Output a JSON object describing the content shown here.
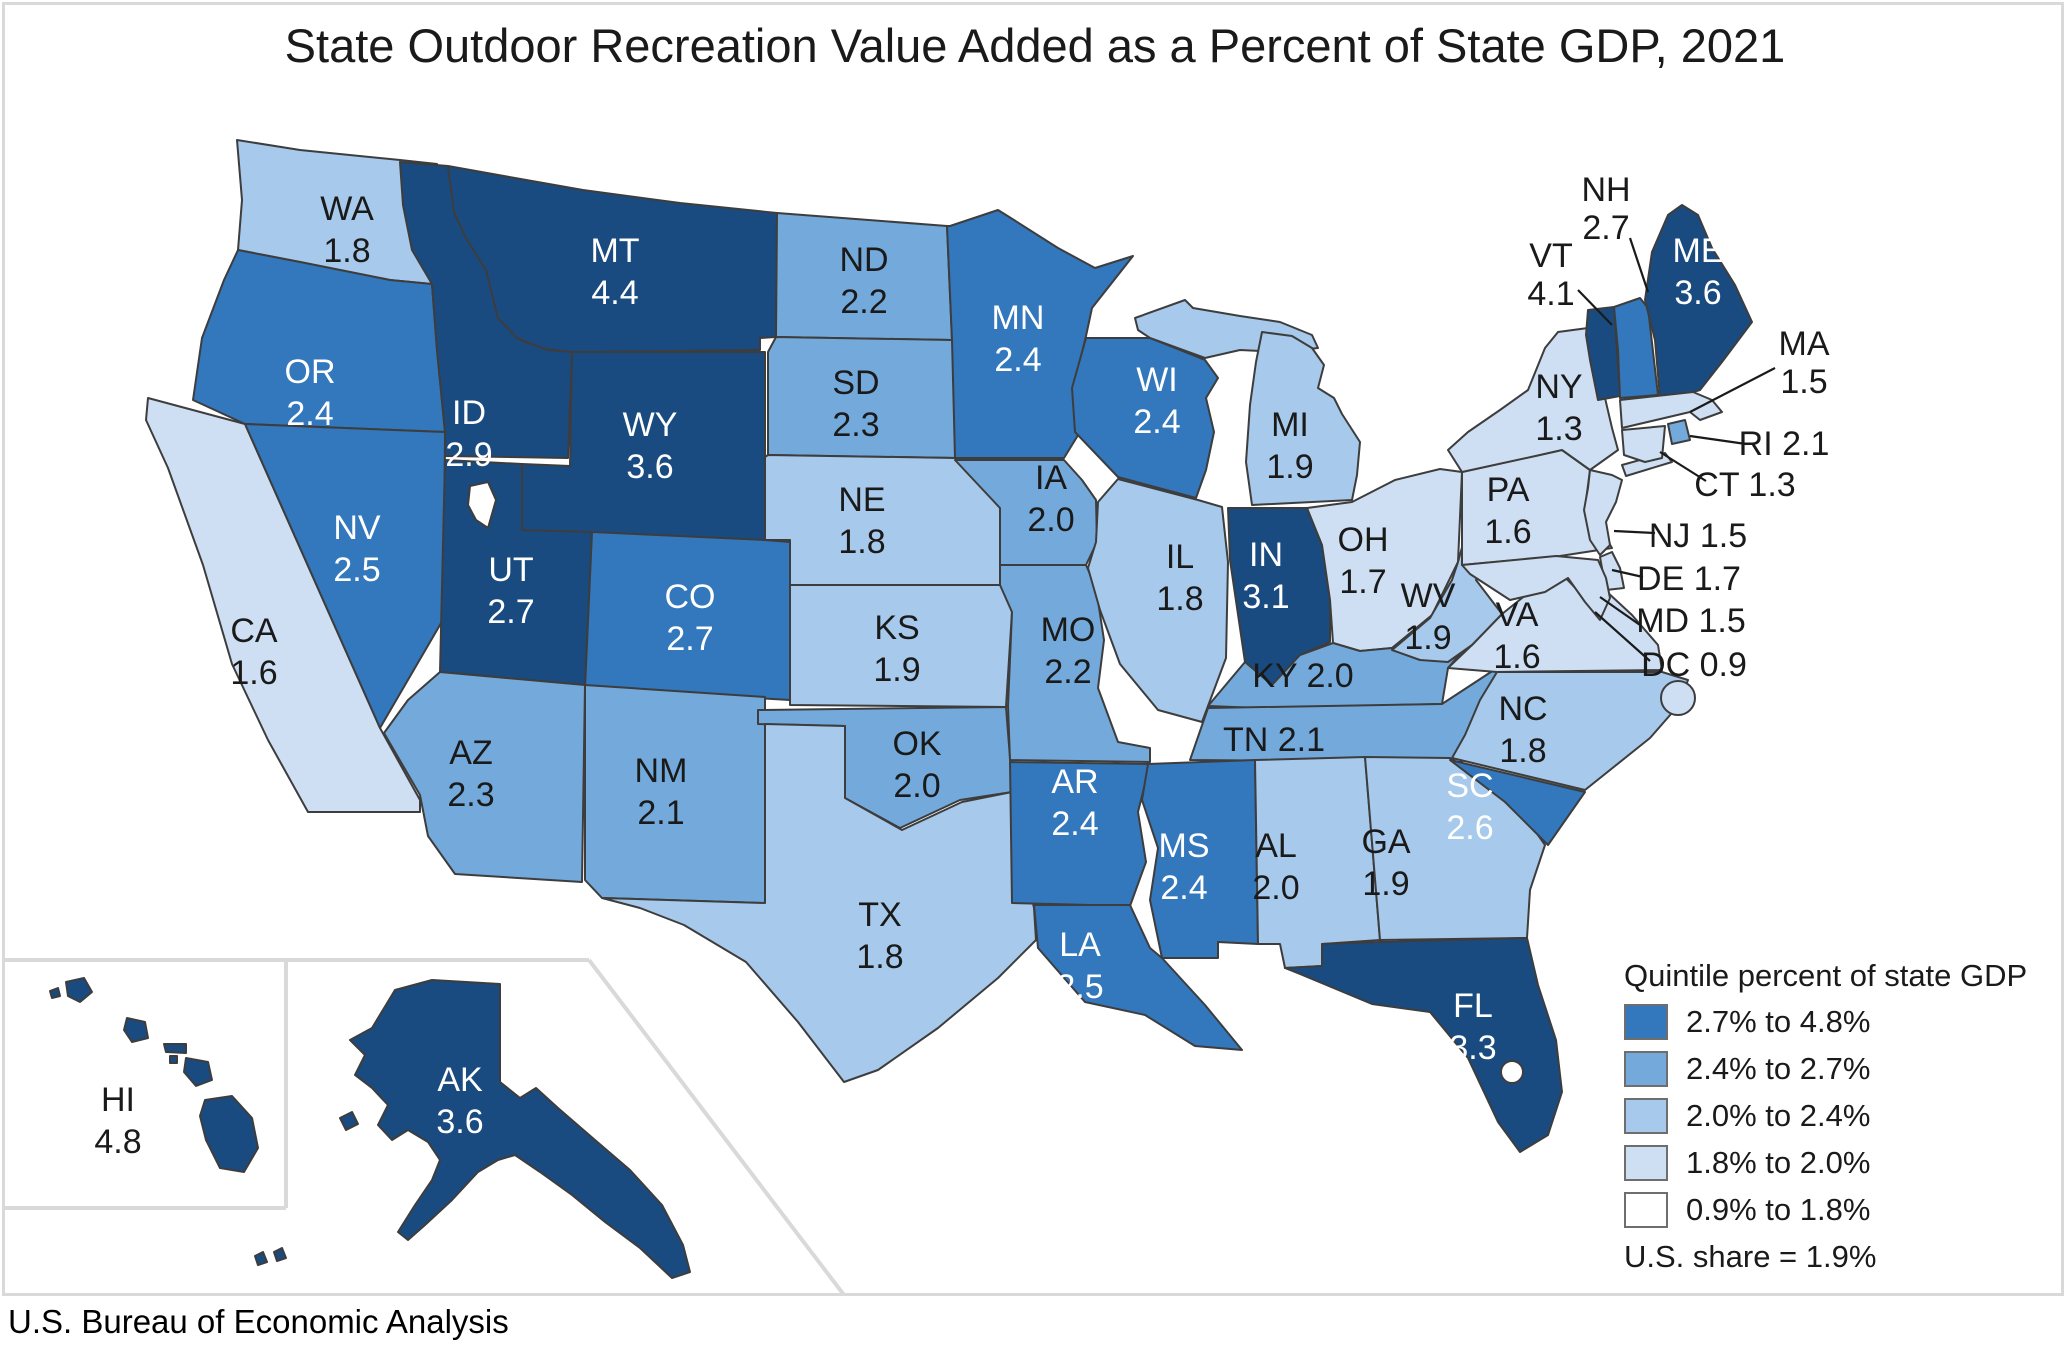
{
  "title": "State Outdoor Recreation Value Added as a Percent of State GDP, 2021",
  "source": "U.S. Bureau of Economic Analysis",
  "legend": {
    "title": "Quintile percent of state GDP",
    "items": [
      {
        "label": "2.7% to 4.8%",
        "color": "#1A4B80"
      },
      {
        "label": "2.4% to 2.7%",
        "color": "#3377BD"
      },
      {
        "label": "2.0% to 2.4%",
        "color": "#74AADB"
      },
      {
        "label": "1.8% to 2.0%",
        "color": "#A7C9EB"
      },
      {
        "label": "0.9% to 1.8%",
        "color": "#CEDFF3"
      }
    ],
    "us_share": "U.S. share = 1.9%"
  },
  "states": [
    {
      "abbr": "WA",
      "value": "1.8",
      "quintile": 4
    },
    {
      "abbr": "OR",
      "value": "2.4",
      "quintile": 2
    },
    {
      "abbr": "CA",
      "value": "1.6",
      "quintile": 5
    },
    {
      "abbr": "NV",
      "value": "2.5",
      "quintile": 2
    },
    {
      "abbr": "ID",
      "value": "2.9",
      "quintile": 1
    },
    {
      "abbr": "MT",
      "value": "4.4",
      "quintile": 1
    },
    {
      "abbr": "WY",
      "value": "3.6",
      "quintile": 1
    },
    {
      "abbr": "UT",
      "value": "2.7",
      "quintile": 1
    },
    {
      "abbr": "CO",
      "value": "2.7",
      "quintile": 2
    },
    {
      "abbr": "AZ",
      "value": "2.3",
      "quintile": 3
    },
    {
      "abbr": "NM",
      "value": "2.1",
      "quintile": 3
    },
    {
      "abbr": "ND",
      "value": "2.2",
      "quintile": 3
    },
    {
      "abbr": "SD",
      "value": "2.3",
      "quintile": 3
    },
    {
      "abbr": "NE",
      "value": "1.8",
      "quintile": 4
    },
    {
      "abbr": "KS",
      "value": "1.9",
      "quintile": 4
    },
    {
      "abbr": "OK",
      "value": "2.0",
      "quintile": 3
    },
    {
      "abbr": "TX",
      "value": "1.8",
      "quintile": 4
    },
    {
      "abbr": "MN",
      "value": "2.4",
      "quintile": 2
    },
    {
      "abbr": "IA",
      "value": "2.0",
      "quintile": 3
    },
    {
      "abbr": "MO",
      "value": "2.2",
      "quintile": 3
    },
    {
      "abbr": "AR",
      "value": "2.4",
      "quintile": 2
    },
    {
      "abbr": "LA",
      "value": "2.5",
      "quintile": 2
    },
    {
      "abbr": "WI",
      "value": "2.4",
      "quintile": 2
    },
    {
      "abbr": "IL",
      "value": "1.8",
      "quintile": 4
    },
    {
      "abbr": "MI",
      "value": "1.9",
      "quintile": 4
    },
    {
      "abbr": "IN",
      "value": "3.1",
      "quintile": 1
    },
    {
      "abbr": "OH",
      "value": "1.7",
      "quintile": 5
    },
    {
      "abbr": "KY",
      "value": "2.0",
      "quintile": 3
    },
    {
      "abbr": "TN",
      "value": "2.1",
      "quintile": 3
    },
    {
      "abbr": "MS",
      "value": "2.4",
      "quintile": 2
    },
    {
      "abbr": "AL",
      "value": "2.0",
      "quintile": 4
    },
    {
      "abbr": "GA",
      "value": "1.9",
      "quintile": 4
    },
    {
      "abbr": "FL",
      "value": "3.3",
      "quintile": 1
    },
    {
      "abbr": "SC",
      "value": "2.6",
      "quintile": 2
    },
    {
      "abbr": "NC",
      "value": "1.8",
      "quintile": 4
    },
    {
      "abbr": "VA",
      "value": "1.6",
      "quintile": 5
    },
    {
      "abbr": "WV",
      "value": "1.9",
      "quintile": 4
    },
    {
      "abbr": "PA",
      "value": "1.6",
      "quintile": 5
    },
    {
      "abbr": "NY",
      "value": "1.3",
      "quintile": 5
    },
    {
      "abbr": "VT",
      "value": "4.1",
      "quintile": 1
    },
    {
      "abbr": "NH",
      "value": "2.7",
      "quintile": 2
    },
    {
      "abbr": "ME",
      "value": "3.6",
      "quintile": 1
    },
    {
      "abbr": "MA",
      "value": "1.5",
      "quintile": 5
    },
    {
      "abbr": "RI",
      "value": "2.1",
      "quintile": 3
    },
    {
      "abbr": "CT",
      "value": "1.3",
      "quintile": 5
    },
    {
      "abbr": "NJ",
      "value": "1.5",
      "quintile": 5
    },
    {
      "abbr": "DE",
      "value": "1.7",
      "quintile": 5
    },
    {
      "abbr": "MD",
      "value": "1.5",
      "quintile": 5
    },
    {
      "abbr": "DC",
      "value": "0.9",
      "quintile": 5
    },
    {
      "abbr": "AK",
      "value": "3.6",
      "quintile": 1
    },
    {
      "abbr": "HI",
      "value": "4.8",
      "quintile": 1
    }
  ]
}
